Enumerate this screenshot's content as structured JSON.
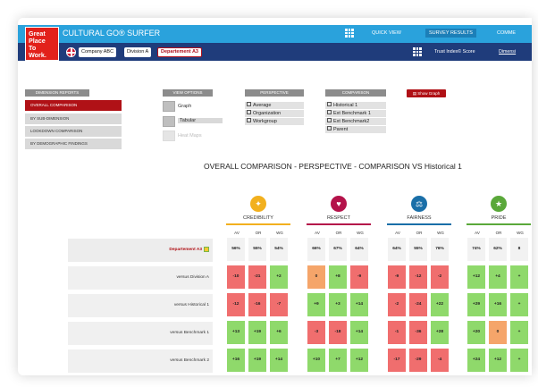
{
  "app": {
    "logo_lines": [
      "Great",
      "Place",
      "To",
      "Work."
    ],
    "title": "CULTURAL GO® SURFER",
    "nav": [
      "QUICK VIEW",
      "SURVEY RESULTS",
      "COMME"
    ],
    "filters": [
      "Company ABC",
      "Division A",
      "Departement A3"
    ],
    "trust_index": "Trust Index© Score",
    "dimensions_link": "Dimensi"
  },
  "panels": {
    "dimension_reports": {
      "header": "DIMENSION REPORTS",
      "items": [
        "OVERALL COMPARISON",
        "BY SUB-DIMENSION",
        "LOOKDOWN COMPARISON",
        "BY DEMOGRAPHIC FINDINGS"
      ]
    },
    "view_options": {
      "header": "VIEW OPTIONS",
      "items": [
        "Graph",
        "Tabular",
        "Heat Maps"
      ]
    },
    "perspective": {
      "header": "PERSPECTIVE",
      "items": [
        "Average",
        "Organization",
        "Workgroup"
      ]
    },
    "comparison": {
      "header": "COMPARISON",
      "items": [
        "Historical 1",
        "Ext Benchmark 1",
        "Ext Benchmark2",
        "Parent"
      ]
    },
    "show_graph": "Show Graph"
  },
  "report": {
    "heading": "OVERALL COMPARISON - PERSPECTIVE  - COMPARISON VS Historical 1",
    "categories": [
      {
        "label": "CREDIBILITY",
        "icon": "credibility-icon",
        "color": "#f2b01e",
        "glyph": "✦"
      },
      {
        "label": "RESPECT",
        "icon": "respect-icon",
        "color": "#b4124a",
        "glyph": "♥"
      },
      {
        "label": "FAIRNESS",
        "icon": "fairness-icon",
        "color": "#1a6fa8",
        "glyph": "⚖"
      },
      {
        "label": "PRIDE",
        "icon": "pride-icon",
        "color": "#5aa83a",
        "glyph": "★"
      }
    ],
    "subcols": [
      "AV",
      "OR",
      "WG"
    ],
    "rows": [
      {
        "label": "Departement A3",
        "type": "pct",
        "values": [
          "56%",
          "55%",
          "54%",
          "66%",
          "67%",
          "64%",
          "64%",
          "55%",
          "76%",
          "74%",
          "62%",
          "8"
        ]
      },
      {
        "label": "versus Division A",
        "type": "delta",
        "values": [
          "-10",
          "-21",
          "+2",
          "0",
          "+8",
          "-9",
          "-9",
          "-12",
          "-2",
          "+12",
          "+4",
          "+"
        ]
      },
      {
        "label": "versus Historical 1",
        "type": "delta",
        "values": [
          "-12",
          "-16",
          "-7",
          "+9",
          "+3",
          "+14",
          "-2",
          "-24",
          "+22",
          "+29",
          "+16",
          "+"
        ]
      },
      {
        "label": "versus Benchmark 1",
        "type": "delta",
        "values": [
          "+13",
          "+19",
          "+6",
          "-3",
          "-18",
          "+14",
          "-1",
          "-36",
          "+28",
          "+20",
          "0",
          "+"
        ]
      },
      {
        "label": "versus Benchmark 2",
        "type": "delta",
        "values": [
          "+16",
          "+19",
          "+14",
          "+10",
          "+7",
          "+12",
          "-17",
          "-29",
          "-4",
          "+24",
          "+12",
          "+"
        ]
      }
    ],
    "colors": {
      "positive": "#8fd96b",
      "negative": "#f06e6e",
      "neutral": "#f5a56a",
      "pct_bg": "#f2f2f2"
    }
  }
}
